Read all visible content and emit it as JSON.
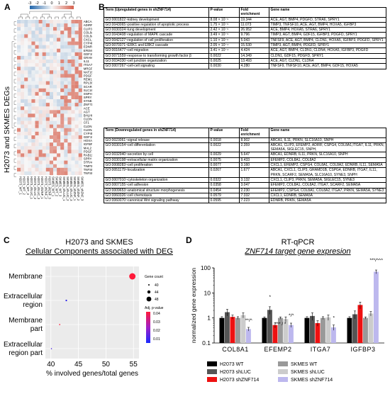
{
  "panels": {
    "a": "A",
    "b": "B",
    "c": "C",
    "d": "D"
  },
  "heatmap": {
    "ylabel": "H2073 and SKMES DEGs",
    "scale_ticks": [
      "-3",
      "-2",
      "-1",
      "0",
      "1",
      "2",
      "3"
    ],
    "genes": [
      "ABCA1",
      "ADIRF",
      "CLIP3",
      "COL8A1",
      "COL8A2",
      "CXCL1",
      "CYP4F3",
      "EDNRB",
      "EFEMP2",
      "GDF15",
      "GRAMD1B",
      "IL11",
      "ITGA7",
      "MRGPRF",
      "NAT16",
      "PDGFD",
      "REM150",
      "RPL36A4",
      "SCARF2",
      "SLC16A10",
      "SNPH",
      "SPRY1",
      "SYNE3",
      "ZNF714",
      "ACE",
      "AGT",
      "BHLHE40",
      "CLDN4",
      "CF1",
      "CLDN1",
      "CLDN4",
      "CYP4F3",
      "GDF15",
      "HOXA5",
      "IGFBP3",
      "MAL2",
      "PDGFD",
      "RAB11",
      "SPRY1",
      "STRA6",
      "TIMP3",
      "TNFSF10",
      "TNFSF15"
    ],
    "columns": [
      "H2073_WT_1",
      "H2073_WT_2",
      "H2073_WT_3",
      "H2073_shLUC_1",
      "H2073_shLUC_2",
      "H2073_shLUC_3",
      "H2073_shZNF_1",
      "H2073_shZNF_2",
      "H2073_shZNF_3",
      "SKMES_WT_1",
      "SKMES_WT_2",
      "SKMES_WT_3",
      "SKMES_shLUC_1",
      "SKMES_shLUC_2",
      "SKMES_shLUC_3",
      "SKMES_shZNF_1",
      "SKMES_shZNF_2",
      "SKMES_shZNF_3"
    ],
    "colors": {
      "low": "#2166ac",
      "mid": "#f7f7f7",
      "high": "#d6604d"
    }
  },
  "table_up": {
    "headers": [
      "Term (Upregulated genes in shZNF714)",
      "P-value",
      "Fold enrichment",
      "Gene name"
    ],
    "rows": [
      [
        "GO:0001822~kidney development",
        "8.08 × 10⁻⁵",
        "19.344",
        "ACE, AGT, BMP4, PDGFD, STRA6, SPRY1"
      ],
      [
        "GO:0043065~positive regulation of apoptotic process",
        "1.75 × 10⁻⁵",
        "11.073",
        "TIMP3, TNFSF10, ACE, AGT, BMP4, HOXA5, IGFBP3"
      ],
      [
        "GO:0030324~lung development",
        "2.42 × 10⁻⁵",
        "26.952",
        "ACE, BMP4, HOXA5, STRA6, SPRY1"
      ],
      [
        "GO:0043408~regulation of MAPK cascade",
        "3.49 × 10⁻⁵",
        "9.796",
        "TIMP3, AGT, BMP4, GDF15, IGFBP3, PDGFD, SPRY1"
      ],
      [
        "GO:0042127~regulation of cell proliferation",
        "1.10 × 10⁻⁶",
        "5.043",
        "TNFSF9, ACE, AGT, BMP4, CLDN1, HOXA5, IGFBP3, PDGFD, SPRY1"
      ],
      [
        "GO:0070371~ERK1 and ERK2 cascade",
        "2.05 × 10⁻⁴",
        "15.530",
        "TIMP3, AGT, BMP4, PDGFD, SPRY1"
      ],
      [
        "GO:0016477~cell migration",
        "3.41 × 10⁻⁴",
        "4.424",
        "ACE, AGT, BMP4, CLDN1, CLDN4, HOXA5, IGFBP3, PDGFD"
      ],
      [
        "GO:0071559~response to transforming growth factor β",
        "0.0022",
        "14.349",
        "CLDN1, GDF15, PDGFD, SPRY1"
      ],
      [
        "GO:0034330~cell junction organization",
        "0.0025",
        "13.493",
        "ACE, AGT, CLDN1, CLDN4"
      ],
      [
        "GO:0007267~cell-cell signaling",
        "0.0030",
        "4.280",
        "TNFSF9, TNFSF10, ACE, AGT, BMP4, GDF15, HOXA5"
      ]
    ]
  },
  "table_down": {
    "headers": [
      "Term (Downregulated genes in shZNF714)",
      "P-value",
      "Fold enrichment",
      "Gene name"
    ],
    "rows": [
      [
        "GO:0023061~signal release",
        "0.0018",
        "8.902",
        "ABCA1, IL11, PRKN, SLC16A10, SNPH"
      ],
      [
        "GO:0030154~cell differentiation",
        "0.0022",
        "2.359",
        "ABCA1, CLIP3, EFEMP2, ADIRF, CSPG4, COL8A1,ITGA7, IL11, PRKN, SEMA5A, SIGLEC15, SNPH,"
      ],
      [
        "GO:0032940~secretion by cell",
        "0.0029",
        "5.647",
        "ABCA1, EDNRB, IL11, PRKN, SLC16A10, SNPH"
      ],
      [
        "GO:0030198~extracellular matrix organization",
        "0.0075",
        "9.433",
        "EFEMP2, COL8A1, COL8A2"
      ],
      [
        "GO:0008283~cell proliferation",
        "0.0077",
        "3.160",
        "CXCL1, EFEMP2, CSPG4, COL8A1, COL8A2, EDNRB, IL11, SEMA5A"
      ],
      [
        "GO:0051179~localization",
        "0.0267",
        "1.677",
        "ABCA1, CXCL1, CLIP3, GRAMD1B, CSPG4, EDNRB, ITGA7, IL11, PRKN, SCARF2, SEMA5A, SLC16A10, SYNE3, SNPH"
      ],
      [
        "GO:0007010~cytoskeleton organization",
        "0.0322",
        "3.132",
        "CXCL1, CLIP3, PRKN, SEMA5A, SIGLEC15, SYNE3"
      ],
      [
        "GO:0007155~cell adhesion",
        "0.0358",
        "3.047",
        "EFEMP2, COL8A1, COL8A2, ITGA7, SCARF2, SEMA5A"
      ],
      [
        "GO:0009653~anatomical structure morphogenesis",
        "0.0454",
        "2.230",
        "EFEMP2, CSPG4, COL8A1, COL8A2, ITGA7, PRKN, SEMA5A, SYNE3"
      ],
      [
        "GO:0060326~cell chemotaxis",
        "0.0579",
        "7.332",
        "CXCL1, EDNRB, SEMA5A"
      ],
      [
        "GO:0060070~canonical Wnt signaling pathway",
        "0.0595",
        "7.223",
        "EDNRB, PRKN, SEMA5A"
      ]
    ]
  },
  "chart_data": [
    {
      "type": "scatter",
      "title": "H2073 and SKMES",
      "subtitle": "Cellular Components associated with DEG",
      "xlabel": "% involved genes/total genes",
      "ylabel": "",
      "xlim": [
        39,
        56
      ],
      "xticks": [
        "40",
        "45",
        "50",
        "55"
      ],
      "categories": [
        "Membrane",
        "Extracellular region",
        "Membrane part",
        "Extracellular region part"
      ],
      "category_labels": [
        [
          "Membrane"
        ],
        [
          "Extracellular",
          "region"
        ],
        [
          "Membrane",
          "part"
        ],
        [
          "Extracellular",
          "region part"
        ]
      ],
      "points": [
        {
          "category": "Membrane",
          "x": 54.8,
          "count": 55,
          "padj": 0.002,
          "color": "#ff1a3a"
        },
        {
          "category": "Extracellular region",
          "x": 42.8,
          "count": 43,
          "padj": 0.045,
          "color": "#2a22e8"
        },
        {
          "category": "Membrane part",
          "x": 41.6,
          "count": 42,
          "padj": 0.01,
          "color": "#ff1a3a"
        },
        {
          "category": "Extracellular region part",
          "x": 40.1,
          "count": 40,
          "padj": 0.04,
          "color": "#4a20e0"
        }
      ],
      "legend_size_title": "Gene count",
      "legend_size": [
        "40",
        "44",
        "48"
      ],
      "legend_color_title": "Adj. p-value",
      "legend_color": [
        "0.04",
        "0.03",
        "0.02",
        "0.01"
      ],
      "grid": true
    },
    {
      "type": "bar",
      "title": "RT-qPCR",
      "subtitle": "ZNF714 target gene expresion",
      "ylabel": "normalized gene expression",
      "yscale": "log",
      "ylim": [
        0.1,
        100
      ],
      "yticks": [
        "0.1",
        "1",
        "10",
        "100"
      ],
      "categories": [
        "COL8A1",
        "EFEMP2",
        "ITGA7",
        "IGFBP3"
      ],
      "series": [
        {
          "name": "H2073 WT",
          "color": "#000000",
          "values": [
            1,
            1,
            1,
            1
          ],
          "err": [
            0.12,
            0.1,
            0.12,
            0.12
          ]
        },
        {
          "name": "H2073 shLUC",
          "color": "#555555",
          "values": [
            1.7,
            2.1,
            1.2,
            1.4
          ],
          "err": [
            0.5,
            0.7,
            0.4,
            0.5
          ]
        },
        {
          "name": "H2073 shZNF714",
          "color": "#ee1111",
          "values": [
            1.1,
            0.52,
            0.62,
            3.3
          ],
          "err": [
            0.2,
            0.12,
            0.15,
            1.0
          ]
        },
        {
          "name": "SKMES WT",
          "color": "#999999",
          "values": [
            1,
            1,
            1,
            1
          ],
          "err": [
            0.12,
            0.1,
            0.12,
            0.1
          ]
        },
        {
          "name": "SKMES shLUC",
          "color": "#cccccc",
          "values": [
            1.3,
            0.9,
            1.05,
            1.5
          ],
          "err": [
            0.3,
            0.2,
            0.25,
            0.3
          ]
        },
        {
          "name": "SKMES shZNF714",
          "color": "#bdb8ee",
          "values": [
            0.36,
            0.52,
            0.42,
            70
          ],
          "err": [
            0.06,
            0.1,
            0.1,
            12
          ]
        }
      ],
      "annotations": [
        {
          "category": "COL8A1",
          "text": "**/^"
        },
        {
          "category": "EFEMP2",
          "text": "*"
        },
        {
          "category": "EFEMP2",
          "text": "*** / *"
        },
        {
          "category": "EFEMP2",
          "text": "*/^"
        },
        {
          "category": "ITGA7",
          "text": "*"
        },
        {
          "category": "IGFBP3",
          "text": "***/^^^"
        }
      ]
    }
  ]
}
